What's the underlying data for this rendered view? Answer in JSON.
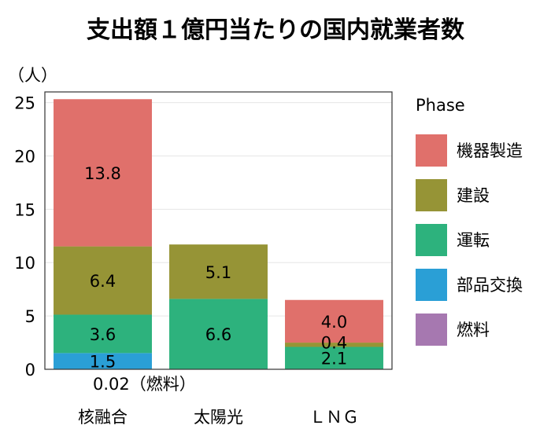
{
  "chart_data": {
    "type": "bar",
    "title": "支出額１億円当たりの国内就業者数",
    "ylabel": "（人）",
    "xlabel": "",
    "ylim": [
      0,
      26
    ],
    "yticks": [
      0,
      5,
      10,
      15,
      20,
      25
    ],
    "categories": [
      "核融合",
      "太陽光",
      "ＬＮＧ"
    ],
    "stacked": true,
    "legend_title": "Phase",
    "legend_position": "right",
    "series": [
      {
        "name": "燃料",
        "color": "#a678b0",
        "values": [
          0.02,
          0,
          0
        ],
        "labels": [
          "",
          "",
          ""
        ]
      },
      {
        "name": "部品交換",
        "color": "#2a9fd6",
        "values": [
          1.5,
          0,
          0
        ],
        "labels": [
          "1.5",
          "",
          ""
        ]
      },
      {
        "name": "運転",
        "color": "#2db27d",
        "values": [
          3.6,
          6.6,
          2.1
        ],
        "labels": [
          "3.6",
          "6.6",
          "2.1"
        ]
      },
      {
        "name": "建設",
        "color": "#969436",
        "values": [
          6.4,
          5.1,
          0.4
        ],
        "labels": [
          "6.4",
          "5.1",
          "0.4"
        ]
      },
      {
        "name": "機器製造",
        "color": "#e0706b",
        "values": [
          13.8,
          0,
          4.0
        ],
        "labels": [
          "13.8",
          "",
          "4.0"
        ]
      }
    ],
    "legend_order": [
      "機器製造",
      "建設",
      "運転",
      "部品交換",
      "燃料"
    ],
    "annotations": [
      {
        "text": "0.02（燃料）",
        "category": "核融合"
      }
    ]
  }
}
